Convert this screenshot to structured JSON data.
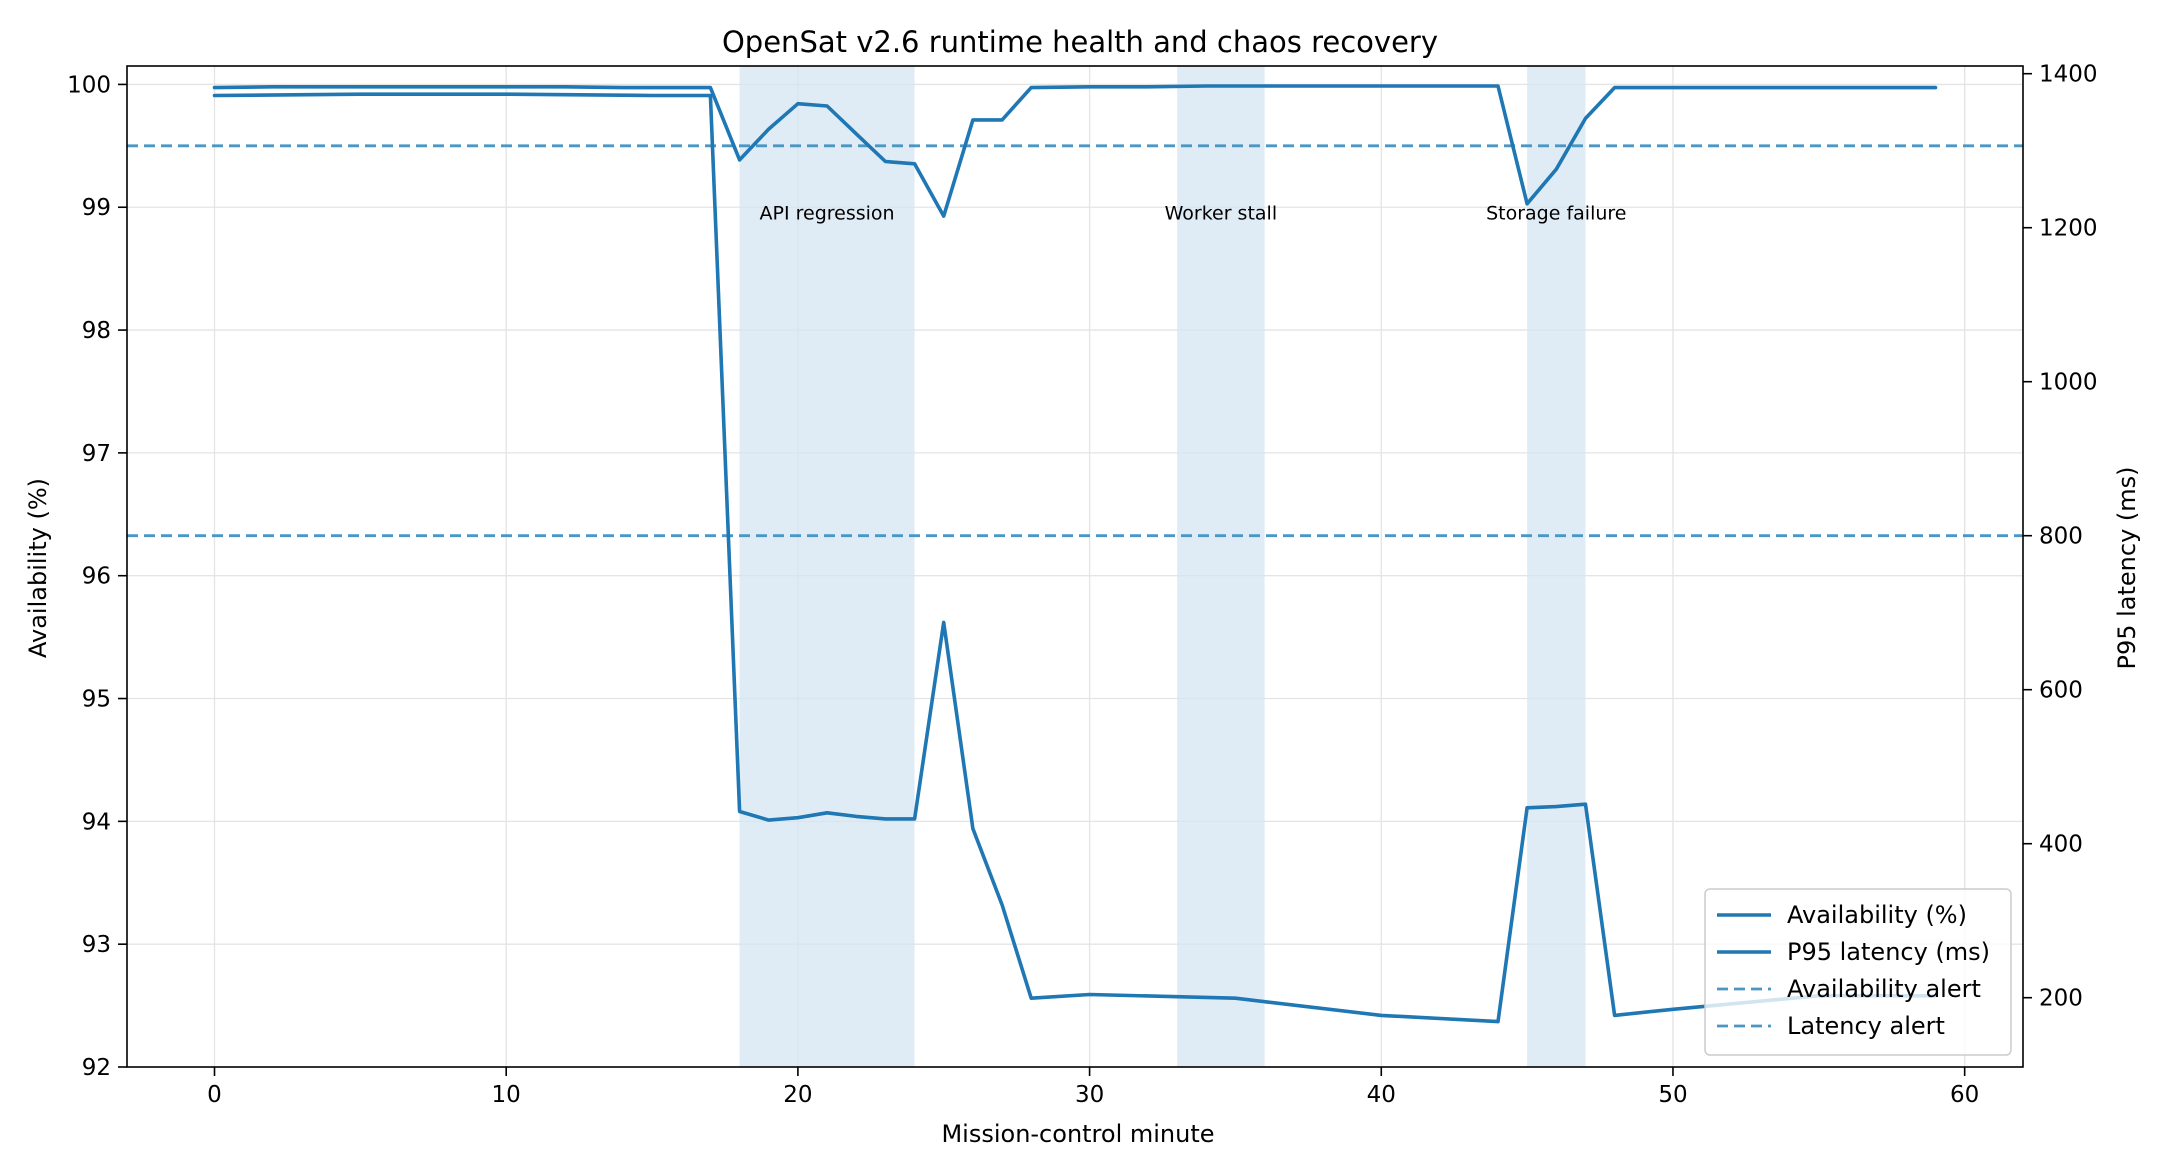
{
  "chart_data": {
    "type": "line",
    "title": "OpenSat v2.6 runtime health and chaos recovery",
    "xlabel": "Mission-control minute",
    "ylabel_left": "Availability (%)",
    "ylabel_right": "P95 latency (ms)",
    "xlim": [
      -3,
      62
    ],
    "ylim_left": [
      92,
      100.15
    ],
    "ylim_right": [
      110,
      1410
    ],
    "x_ticks": [
      0,
      10,
      20,
      30,
      40,
      50,
      60
    ],
    "y_ticks_left": [
      92,
      93,
      94,
      95,
      96,
      97,
      98,
      99,
      100
    ],
    "y_ticks_right": [
      200,
      400,
      600,
      800,
      1000,
      1200,
      1400
    ],
    "grid": true,
    "legend_position": "lower-right",
    "colors": {
      "series": "#1f77b4",
      "alert": "#4a96c4",
      "shade": "#d6e6f2",
      "grid": "#e4e4e4"
    },
    "incidents": [
      {
        "label": "API regression",
        "start": 18,
        "end": 24
      },
      {
        "label": "Worker stall",
        "start": 33,
        "end": 36
      },
      {
        "label": "Storage failure",
        "start": 45,
        "end": 47
      }
    ],
    "thresholds": [
      {
        "name": "Availability alert",
        "axis": "left",
        "value": 99.5,
        "style": "dashed"
      },
      {
        "name": "Latency alert",
        "axis": "right",
        "value": 800,
        "style": "dashed"
      }
    ],
    "series": [
      {
        "name": "Availability (%)",
        "axis": "left",
        "style": "solid",
        "x": [
          0,
          5,
          10,
          15,
          17,
          18,
          19,
          20,
          21,
          22,
          23,
          24,
          25,
          26,
          27,
          28,
          30,
          35,
          40,
          44,
          45,
          46,
          47,
          48,
          50,
          55,
          59
        ],
        "y": [
          99.91,
          99.92,
          99.92,
          99.91,
          99.91,
          94.08,
          94.01,
          94.03,
          94.07,
          94.04,
          94.02,
          94.02,
          95.62,
          93.94,
          93.32,
          92.56,
          92.59,
          92.56,
          92.42,
          92.37,
          94.11,
          94.12,
          94.14,
          92.42,
          92.47,
          92.58,
          92.58
        ]
      },
      {
        "name": "P95 latency (ms)",
        "axis": "right",
        "style": "solid",
        "x": [
          0,
          2,
          4,
          6,
          8,
          10,
          12,
          14,
          16,
          17,
          18,
          19,
          20,
          21,
          22,
          23,
          24,
          25,
          26,
          27,
          28,
          30,
          32,
          34,
          36,
          38,
          40,
          42,
          44,
          45,
          46,
          47,
          48,
          50,
          52,
          54,
          56,
          59
        ],
        "y": [
          1382,
          1383,
          1383,
          1383,
          1383,
          1383,
          1383,
          1382,
          1382,
          1382,
          1288,
          1328,
          1361,
          1358,
          1322,
          1286,
          1283,
          1215,
          1340,
          1340,
          1382,
          1383,
          1383,
          1384,
          1384,
          1384,
          1384,
          1384,
          1384,
          1231,
          1276,
          1342,
          1382,
          1382,
          1382,
          1382,
          1382,
          1382
        ]
      }
    ]
  }
}
